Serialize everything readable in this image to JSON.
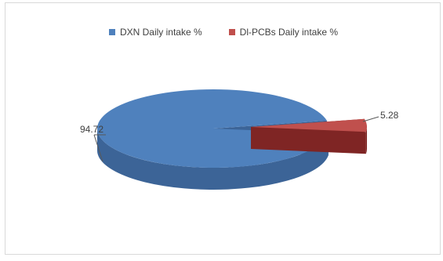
{
  "chart_data": {
    "type": "pie",
    "style": "3d-exploded",
    "title": "",
    "legend_position": "top",
    "series": [
      {
        "name": "DXN Daily intake %",
        "value": 94.72,
        "color": "#4f81bd",
        "side_color": "#3c6497",
        "label": "94.72"
      },
      {
        "name": "Dl-PCBs Daily intake %",
        "value": 5.28,
        "color": "#c0504d",
        "side_color": "#7f2524",
        "label": "5.28"
      }
    ]
  }
}
